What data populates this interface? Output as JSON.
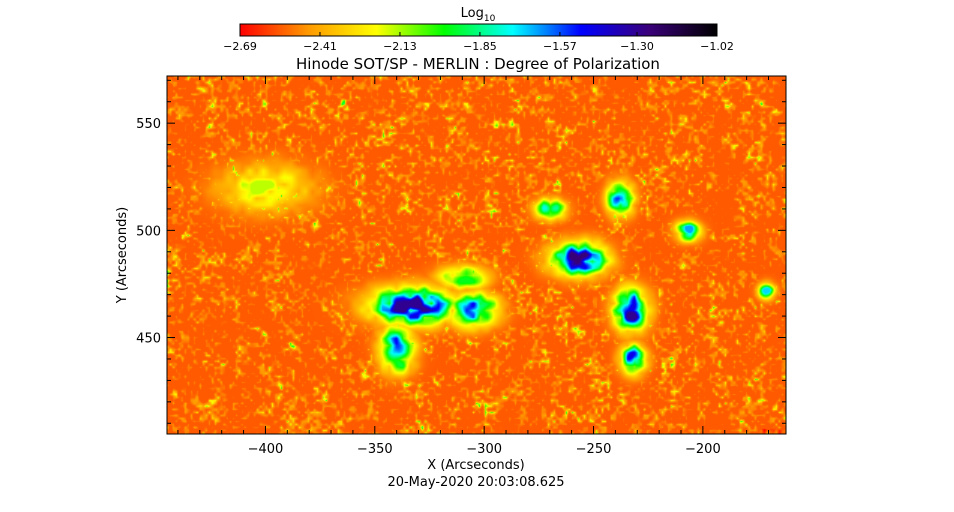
{
  "chart_data": {
    "type": "heatmap",
    "title": "Hinode SOT/SP - MERLIN : Degree of Polarization",
    "xlabel": "X (Arcseconds)",
    "ylabel": "Y (Arcseconds)",
    "footer": "20-May-2020 20:03:08.625",
    "xlim": [
      -445,
      -162
    ],
    "ylim": [
      405,
      572
    ],
    "x_ticks": [
      -400,
      -350,
      -300,
      -250,
      -200
    ],
    "x_tick_labels": [
      "−400",
      "−350",
      "−300",
      "−250",
      "−200"
    ],
    "y_ticks": [
      450,
      500,
      550
    ],
    "y_tick_labels": [
      "450",
      "500",
      "550"
    ],
    "colorbar": {
      "label_base": "Log",
      "label_sub": "10",
      "range": [
        -2.69,
        -1.02
      ],
      "ticks": [
        -2.69,
        -2.41,
        -2.13,
        -1.85,
        -1.57,
        -1.3,
        -1.02
      ],
      "tick_labels": [
        "−2.69",
        "−2.41",
        "−2.13",
        "−1.85",
        "−1.57",
        "−1.30",
        "−1.02"
      ],
      "colors": [
        "#ff0000",
        "#ff9900",
        "#ffff00",
        "#00ff00",
        "#00ffff",
        "#0000ff",
        "#3a007a",
        "#000000"
      ]
    },
    "background_level": -2.55,
    "polarized_regions": [
      {
        "x": -333,
        "y": 465,
        "rx": 20,
        "ry": 9,
        "peak": -1.3
      },
      {
        "x": -305,
        "y": 463,
        "rx": 11,
        "ry": 8,
        "peak": -1.45
      },
      {
        "x": -340,
        "y": 445,
        "rx": 8,
        "ry": 11,
        "peak": -1.5
      },
      {
        "x": -257,
        "y": 487,
        "rx": 13,
        "ry": 8,
        "peak": -1.25
      },
      {
        "x": -270,
        "y": 510,
        "rx": 7,
        "ry": 5,
        "peak": -1.55
      },
      {
        "x": -238,
        "y": 515,
        "rx": 6,
        "ry": 8,
        "peak": -1.45
      },
      {
        "x": -233,
        "y": 463,
        "rx": 8,
        "ry": 10,
        "peak": -1.3
      },
      {
        "x": -232,
        "y": 440,
        "rx": 6,
        "ry": 7,
        "peak": -1.45
      },
      {
        "x": -207,
        "y": 500,
        "rx": 6,
        "ry": 5,
        "peak": -1.65
      },
      {
        "x": -171,
        "y": 472,
        "rx": 4,
        "ry": 4,
        "peak": -1.7
      },
      {
        "x": -310,
        "y": 478,
        "rx": 12,
        "ry": 6,
        "peak": -1.95
      },
      {
        "x": -400,
        "y": 520,
        "rx": 22,
        "ry": 12,
        "peak": -2.15
      }
    ]
  }
}
